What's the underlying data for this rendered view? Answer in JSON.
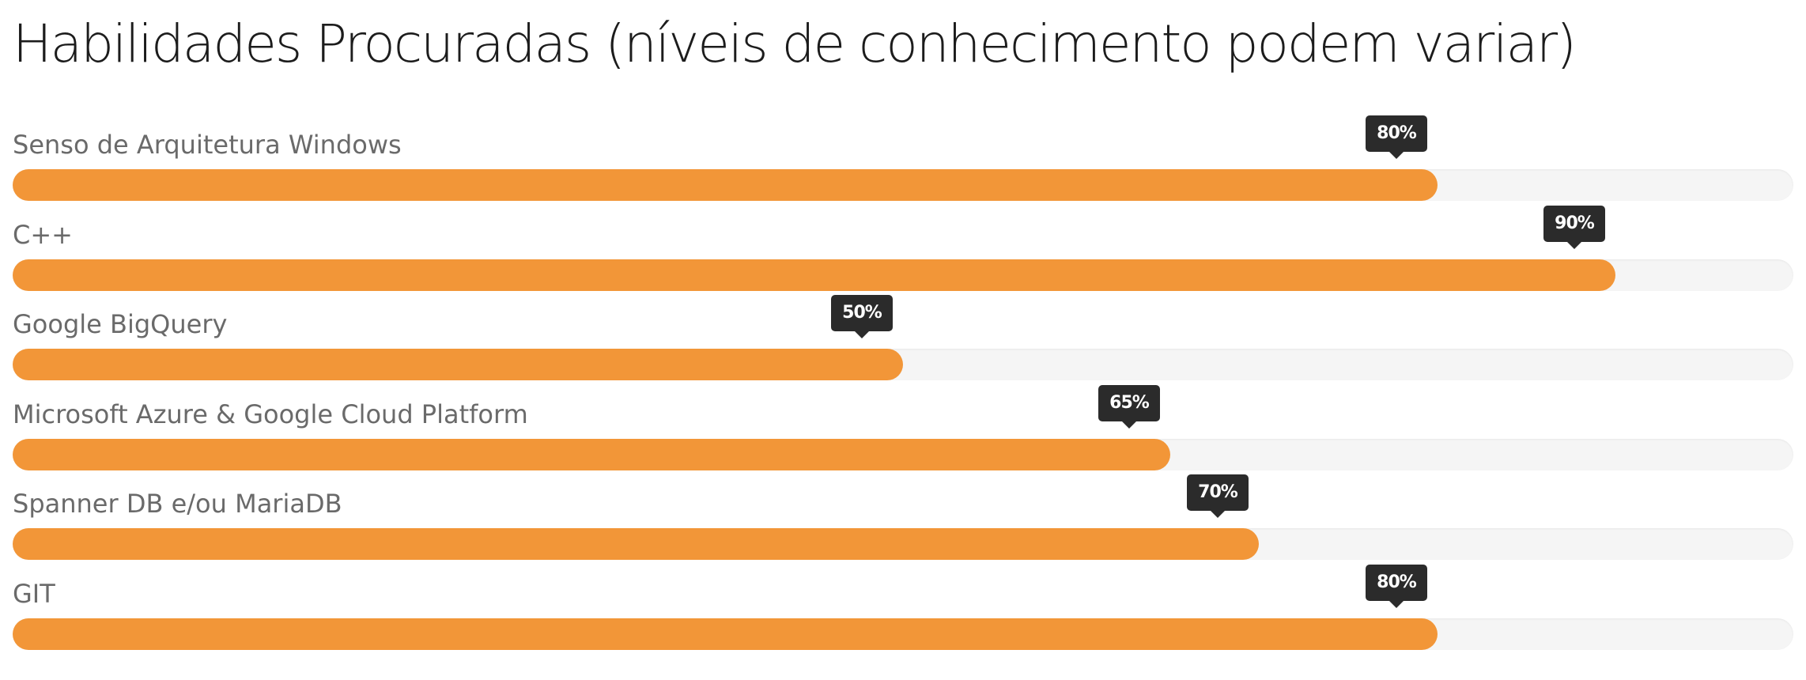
{
  "title": "Habilidades Procuradas (níveis de conhecimento podem variar)",
  "colors": {
    "fill": "#f29638",
    "track": "#f5f5f5",
    "badge": "#2b2b2b",
    "title": "#1c1c1c",
    "label": "#6a6a6a"
  },
  "skills": [
    {
      "label": "Senso de Arquitetura Windows",
      "percent_label": "80%",
      "level": 0.8
    },
    {
      "label": "C++",
      "percent_label": "90%",
      "level": 0.9
    },
    {
      "label": "Google BigQuery",
      "percent_label": "50%",
      "level": 0.5
    },
    {
      "label": "Microsoft Azure & Google Cloud Platform",
      "percent_label": "65%",
      "level": 0.65
    },
    {
      "label": "Spanner DB e/ou MariaDB",
      "percent_label": "70%",
      "level": 0.7
    },
    {
      "label": "GIT",
      "percent_label": "80%",
      "level": 0.8
    }
  ]
}
